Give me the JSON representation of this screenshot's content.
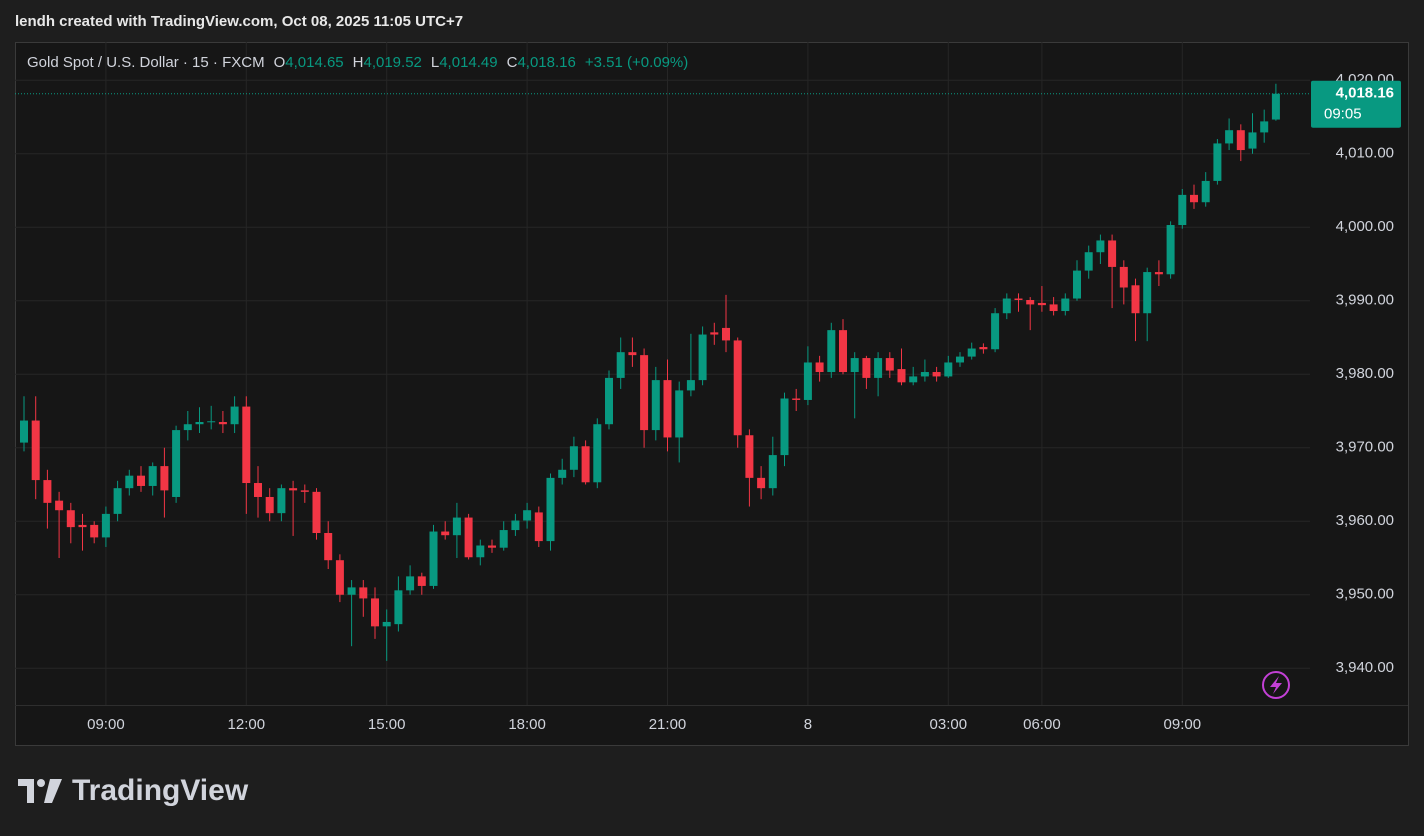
{
  "header": {
    "caption": "lendh created with TradingView.com, Oct 08, 2025 11:05 UTC+7",
    "ohlc": [
      {
        "key": "O",
        "value": "4,014.65"
      },
      {
        "key": "H",
        "value": "4,019.52"
      },
      {
        "key": "L",
        "value": "4,014.49"
      },
      {
        "key": "C",
        "value": "4,018.16"
      }
    ],
    "change": "+3.51 (+0.09%)"
  },
  "branding": "TradingView",
  "chart_data": {
    "type": "candlestick",
    "title": "Gold Spot / U.S. Dollar · 15 · FXCM",
    "up_color": "#089981",
    "down_color": "#f23645",
    "grid": true,
    "last_price": {
      "value": 4018.16,
      "label": "4,018.16"
    },
    "countdown": "09:05",
    "ylim": [
      3935,
      4025.2
    ],
    "yticks": [
      {
        "value": 4020,
        "label": "4,020.00"
      },
      {
        "value": 4010,
        "label": "4,010.00"
      },
      {
        "value": 4000,
        "label": "4,000.00"
      },
      {
        "value": 3990,
        "label": "3,990.00"
      },
      {
        "value": 3980,
        "label": "3,980.00"
      },
      {
        "value": 3970,
        "label": "3,970.00"
      },
      {
        "value": 3960,
        "label": "3,960.00"
      },
      {
        "value": 3950,
        "label": "3,950.00"
      },
      {
        "value": 3940,
        "label": "3,940.00"
      }
    ],
    "categories": [
      null,
      null,
      null,
      null,
      null,
      null,
      null,
      "09:00",
      null,
      null,
      null,
      null,
      null,
      null,
      null,
      null,
      null,
      null,
      null,
      "12:00",
      null,
      null,
      null,
      null,
      null,
      null,
      null,
      null,
      null,
      null,
      null,
      "15:00",
      null,
      null,
      null,
      null,
      null,
      null,
      null,
      null,
      null,
      null,
      null,
      "18:00",
      null,
      null,
      null,
      null,
      null,
      null,
      null,
      null,
      null,
      null,
      null,
      "21:00",
      null,
      null,
      null,
      null,
      null,
      null,
      null,
      null,
      null,
      null,
      null,
      "8",
      null,
      null,
      null,
      null,
      null,
      null,
      null,
      null,
      null,
      null,
      null,
      "03:00",
      null,
      null,
      null,
      null,
      null,
      null,
      null,
      "06:00",
      null,
      null,
      null,
      null,
      null,
      null,
      null,
      null,
      null,
      null,
      null,
      "09:00",
      null,
      null,
      null,
      null,
      null,
      null,
      null,
      null
    ],
    "open": [
      3970.7,
      3973.7,
      3965.6,
      3962.8,
      3961.5,
      3959.5,
      3959.5,
      3957.8,
      3961,
      3964.5,
      3966.2,
      3964.8,
      3967.5,
      3963.3,
      3972.4,
      3973.2,
      3973.5,
      3973.5,
      3973.2,
      3975.6,
      3965.2,
      3963.3,
      3961.1,
      3964.5,
      3964.2,
      3964,
      3958.4,
      3954.7,
      3950,
      3951,
      3949.5,
      3945.7,
      3946,
      3950.6,
      3952.5,
      3951.2,
      3958.6,
      3958.1,
      3960.5,
      3955.1,
      3956.7,
      3956.4,
      3958.8,
      3960.1,
      3961.2,
      3957.3,
      3965.9,
      3967,
      3970.2,
      3965.3,
      3973.2,
      3979.5,
      3983,
      3982.6,
      3972.4,
      3979.2,
      3971.4,
      3977.8,
      3979.2,
      3985.7,
      3986.3,
      3984.6,
      3971.7,
      3965.9,
      3964.5,
      3969,
      3976.7,
      3976.5,
      3981.6,
      3980.3,
      3986,
      3980.3,
      3982.2,
      3979.5,
      3982.2,
      3980.7,
      3978.9,
      3979.7,
      3980.3,
      3979.7,
      3981.6,
      3982.4,
      3983.7,
      3983.4,
      3988.3,
      3990.3,
      3990.1,
      3989.7,
      3989.5,
      3988.6,
      3990.3,
      3994.1,
      3996.6,
      3998.2,
      3994.6,
      3992.1,
      3988.3,
      3993.9,
      3993.6,
      4000.3,
      4004.4,
      4003.4,
      4006.3,
      4011.4,
      4013.2,
      4010.7,
      4012.9,
      4014.65
    ],
    "high": [
      3977,
      3977,
      3967,
      3964,
      3962.5,
      3961,
      3960,
      3962,
      3965.5,
      3967,
      3967.5,
      3968,
      3970,
      3973,
      3975,
      3975.5,
      3975.7,
      3975,
      3977,
      3977,
      3967.5,
      3964.5,
      3965,
      3965.5,
      3965,
      3964.5,
      3960,
      3955.5,
      3952,
      3952,
      3951,
      3948,
      3952.5,
      3954,
      3953,
      3959.5,
      3960,
      3962.5,
      3961,
      3957.5,
      3957.5,
      3960,
      3961,
      3962.5,
      3962,
      3966.5,
      3968.5,
      3971.5,
      3971,
      3974,
      3980.5,
      3985,
      3985,
      3983.5,
      3981,
      3982,
      3979,
      3985.5,
      3986.5,
      3987,
      3990.8,
      3985,
      3972.5,
      3967.5,
      3971.5,
      3977.5,
      3978,
      3983.8,
      3982.5,
      3987,
      3987.5,
      3983,
      3982.5,
      3983,
      3983,
      3983.5,
      3981,
      3982,
      3981,
      3982.5,
      3983,
      3984.3,
      3984.2,
      3989,
      3991,
      3991,
      3990.5,
      3992,
      3990.5,
      3991,
      3995.5,
      3997.5,
      3999,
      3999,
      3995.5,
      3993,
      3994.5,
      3995.5,
      4000.8,
      4005.2,
      4005.8,
      4007.5,
      4012,
      4014.8,
      4014,
      4015.5,
      4016,
      4019.52
    ],
    "low": [
      3969.5,
      3963,
      3959,
      3955,
      3957,
      3956,
      3957,
      3956.5,
      3960,
      3963.5,
      3964,
      3963.5,
      3960.5,
      3962.5,
      3971,
      3972,
      3972.5,
      3972,
      3972,
      3961,
      3960.5,
      3960,
      3960,
      3958,
      3962.5,
      3957.5,
      3953.5,
      3949,
      3943,
      3947,
      3944,
      3941,
      3945,
      3950,
      3950,
      3950.8,
      3957.5,
      3955,
      3954.8,
      3954,
      3955.7,
      3956,
      3958,
      3959,
      3956.5,
      3956,
      3965,
      3966,
      3965,
      3964.5,
      3972.5,
      3978,
      3981,
      3970,
      3971,
      3969.5,
      3968,
      3977,
      3978.5,
      3984,
      3983,
      3970,
      3962,
      3963,
      3963.5,
      3967.5,
      3975,
      3975.8,
      3979,
      3979.5,
      3980,
      3974,
      3978,
      3977,
      3979.5,
      3978.5,
      3978.5,
      3979,
      3979,
      3979.5,
      3981,
      3982,
      3982.8,
      3983,
      3987.5,
      3988.5,
      3986,
      3988.5,
      3988,
      3988,
      3990,
      3993,
      3995,
      3989,
      3989.5,
      3984.5,
      3984.5,
      3992,
      3993,
      3999.8,
      4002.5,
      4002.8,
      4005.8,
      4010.5,
      4009,
      4010,
      4011.5,
      4014.49
    ],
    "close": [
      3973.7,
      3965.6,
      3962.5,
      3961.5,
      3959.2,
      3959.2,
      3957.8,
      3961,
      3964.5,
      3966.2,
      3964.8,
      3967.5,
      3964.2,
      3972.4,
      3973.2,
      3973.5,
      3973.6,
      3973.2,
      3975.6,
      3965.2,
      3963.3,
      3961.1,
      3964.5,
      3964.2,
      3964,
      3958.4,
      3954.7,
      3950,
      3951,
      3949.5,
      3945.7,
      3946.3,
      3950.6,
      3952.5,
      3951.2,
      3958.6,
      3958.1,
      3960.5,
      3955.1,
      3956.7,
      3956.4,
      3958.8,
      3960.1,
      3961.5,
      3957.3,
      3965.9,
      3967,
      3970.2,
      3965.3,
      3973.2,
      3979.5,
      3983,
      3982.6,
      3972.4,
      3979.2,
      3971.4,
      3977.8,
      3979.2,
      3985.4,
      3985.4,
      3984.6,
      3971.7,
      3965.9,
      3964.5,
      3969,
      3976.7,
      3976.5,
      3981.6,
      3980.3,
      3986,
      3980.3,
      3982.2,
      3979.5,
      3982.2,
      3980.5,
      3978.9,
      3979.7,
      3980.3,
      3979.7,
      3981.6,
      3982.4,
      3983.5,
      3983.4,
      3988.3,
      3990.3,
      3990.1,
      3989.5,
      3989.4,
      3988.6,
      3990.3,
      3994.1,
      3996.6,
      3998.2,
      3994.6,
      3991.8,
      3988.3,
      3993.9,
      3993.6,
      4000.3,
      4004.4,
      4003.4,
      4006.3,
      4011.4,
      4013.2,
      4010.5,
      4012.9,
      4014.4,
      4018.16
    ]
  }
}
